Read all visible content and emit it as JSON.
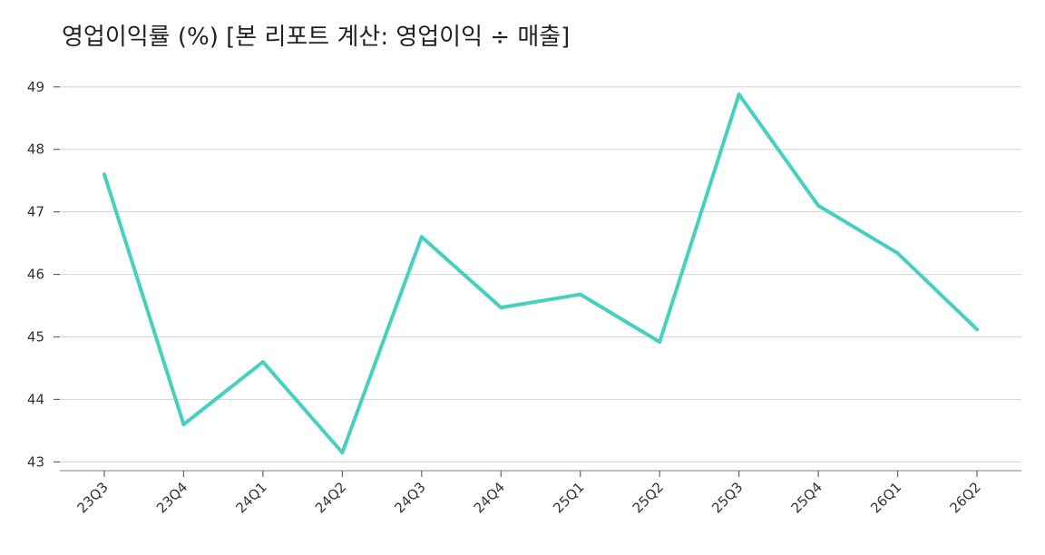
{
  "chart_data": {
    "type": "line",
    "title": "영업이익률 (%) [본 리포트 계산: 영업이익 ÷ 매출]",
    "xlabel": "",
    "ylabel": "",
    "categories": [
      "23Q3",
      "23Q4",
      "24Q1",
      "24Q2",
      "24Q3",
      "24Q4",
      "25Q1",
      "25Q2",
      "25Q3",
      "25Q4",
      "26Q1",
      "26Q2"
    ],
    "series": [
      {
        "values": [
          47.6,
          43.6,
          44.6,
          43.15,
          46.6,
          45.47,
          45.68,
          44.92,
          48.88,
          47.1,
          46.34,
          45.12
        ],
        "color": "#45d0c0"
      }
    ],
    "yticks": [
      43,
      44,
      45,
      46,
      47,
      48,
      49
    ],
    "ylim": [
      42.86,
      49.2
    ],
    "grid": true,
    "legend": "none"
  }
}
